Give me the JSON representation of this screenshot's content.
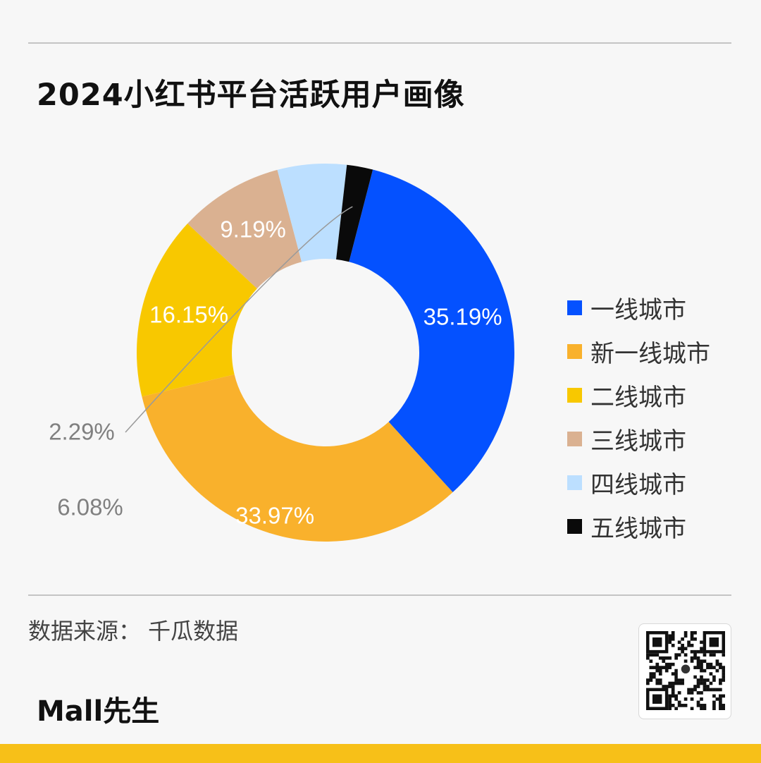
{
  "title": "2024小红书平台活跃用户画像",
  "chart_data": {
    "type": "pie",
    "variant": "donut",
    "title": "2024小红书平台活跃用户画像",
    "categories": [
      "一线城市",
      "新一线城市",
      "二线城市",
      "三线城市",
      "四线城市",
      "五线城市"
    ],
    "values": [
      35.19,
      33.97,
      16.15,
      9.19,
      6.08,
      2.29
    ],
    "value_labels": [
      "35.19%",
      "33.97%",
      "16.15%",
      "9.19%",
      "6.08%",
      "2.29%"
    ],
    "colors": [
      "#0451ff",
      "#f9b12c",
      "#f8c800",
      "#dab191",
      "#bcdfff",
      "#0a0a0a"
    ],
    "label_colors": [
      "#ffffff",
      "#ffffff",
      "#ffffff",
      "#ffffff",
      "#808080",
      "#808080"
    ],
    "legend_position": "right"
  },
  "source": "数据来源：  千瓜数据",
  "brand": "Mall先生",
  "colors": {
    "background": "#f7f7f7",
    "accent_bar": "#f7c018",
    "rule": "#c4c4c4"
  }
}
